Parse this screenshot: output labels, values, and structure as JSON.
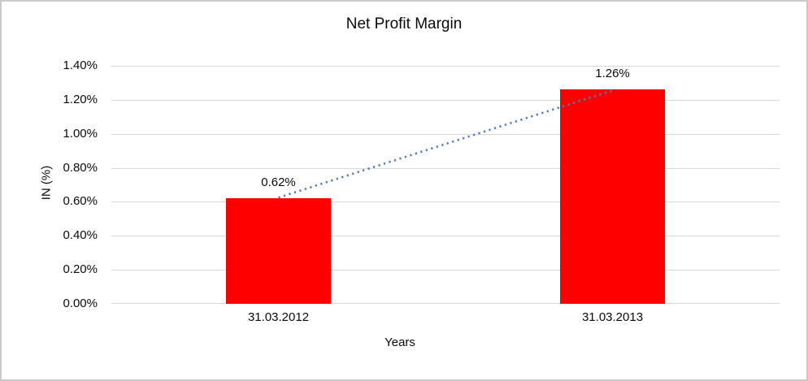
{
  "chart_data": {
    "type": "bar",
    "title": "Net Profit Margin",
    "xlabel": "Years",
    "ylabel": "IN (%)",
    "categories": [
      "31.03.2012",
      "31.03.2013"
    ],
    "values": [
      0.62,
      1.26
    ],
    "value_labels": [
      "0.62%",
      "1.26%"
    ],
    "y_tick_labels": [
      "0.00%",
      "0.20%",
      "0.40%",
      "0.60%",
      "0.80%",
      "1.00%",
      "1.20%",
      "1.40%"
    ],
    "ylim": [
      0,
      1.4
    ],
    "tick_step": 0.2,
    "grid": "horizontal",
    "legend_position": "none",
    "bar_color": "#ff0000",
    "gridline_color": "#d9d9d9",
    "text_color": "#0a0a0a",
    "frame_border_color": "#c9c9c9",
    "trendline": {
      "type": "linear",
      "style": "dotted",
      "color": "#4a7ebe",
      "from_value": 0.62,
      "to_value": 1.26
    }
  }
}
